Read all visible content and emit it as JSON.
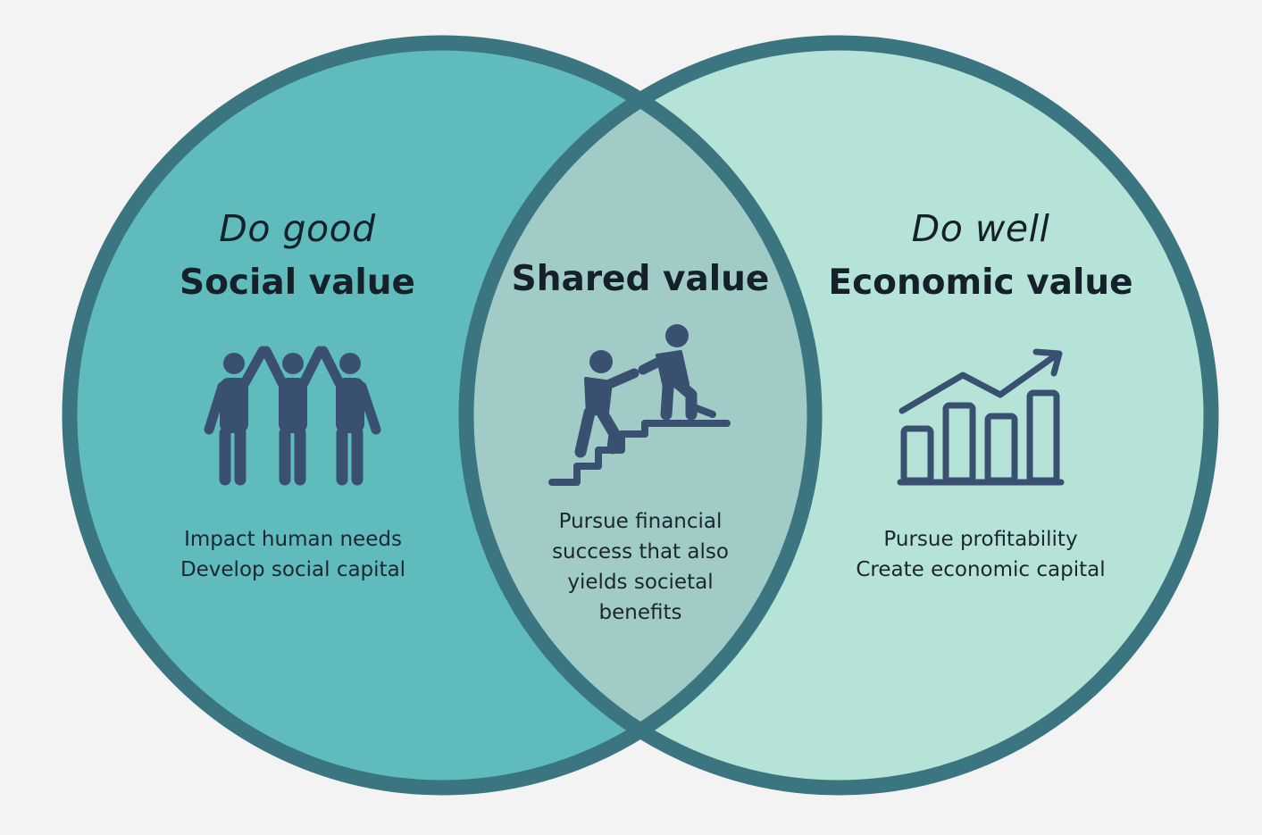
{
  "colors": {
    "background": "#f3f3f3",
    "left_fill": "#60bcbc",
    "right_fill": "#b5e3d8",
    "overlap_fill": "#a0cbc7",
    "outline": "#3b7680",
    "icon": "#3a5070"
  },
  "left": {
    "italic_title": "Do good",
    "title": "Social value",
    "icon": "people-cheering-icon",
    "lines": [
      "Impact human needs",
      "Develop social capital"
    ]
  },
  "center": {
    "title": "Shared value",
    "icon": "helping-up-stairs-icon",
    "lines": [
      "Pursue financial",
      "success that also",
      "yields societal",
      "benefits"
    ]
  },
  "right": {
    "italic_title": "Do well",
    "title": "Economic value",
    "icon": "growth-bar-chart-icon",
    "lines": [
      "Pursue profitability",
      "Create economic capital"
    ]
  }
}
